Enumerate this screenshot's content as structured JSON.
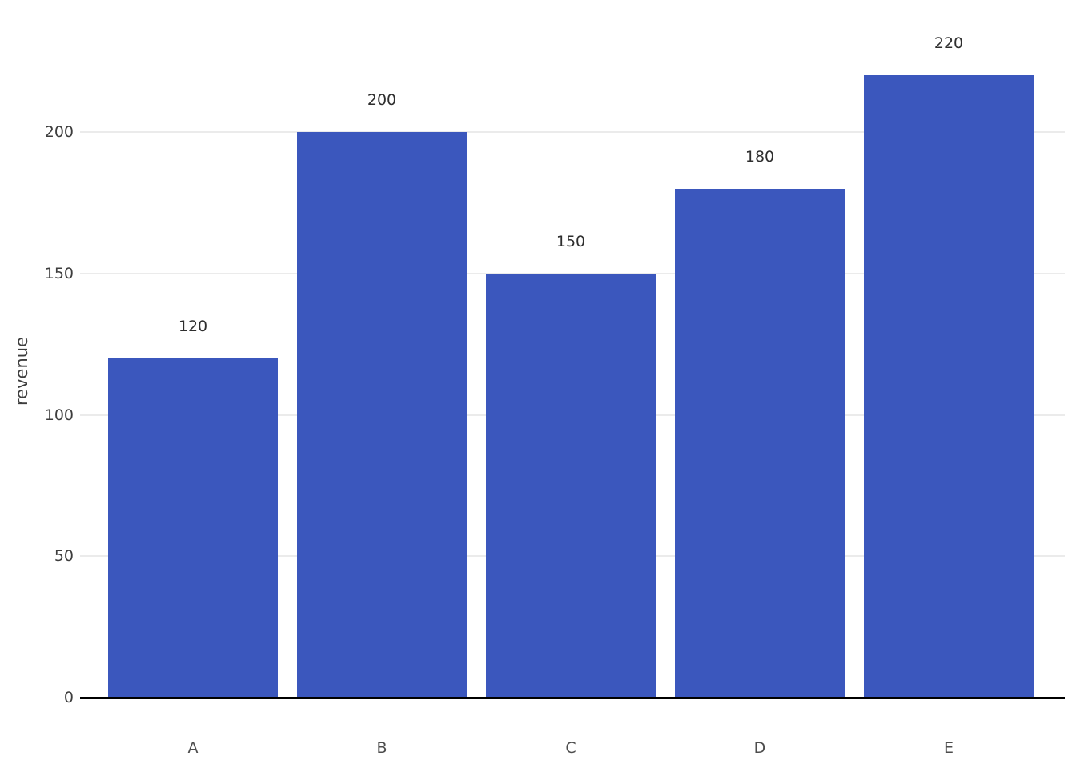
{
  "chart_data": {
    "type": "bar",
    "categories": [
      "A",
      "B",
      "C",
      "D",
      "E"
    ],
    "values": [
      120,
      200,
      150,
      180,
      220
    ],
    "value_labels": [
      "120",
      "200",
      "150",
      "180",
      "220"
    ],
    "title": "",
    "xlabel": "",
    "ylabel": "revenue",
    "ylim": [
      0,
      220
    ],
    "yticks": [
      0,
      50,
      100,
      150,
      200
    ],
    "grid": true,
    "legend": false,
    "colors": {
      "bar": "#3B57BD",
      "gridline": "#EBEBEB",
      "axis_line": "#000000",
      "tick_label": "#3D3D3D",
      "category_label": "#4D4D4D",
      "value_label": "#2E2E2E",
      "background": "#FFFFFF"
    }
  }
}
